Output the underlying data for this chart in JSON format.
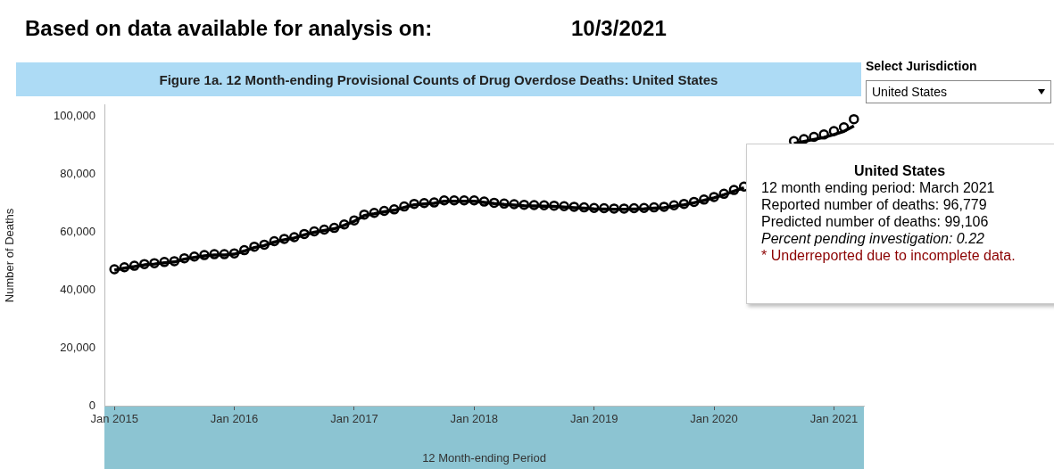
{
  "chart_data": {
    "type": "line",
    "title": "Figure 1a. 12 Month-ending Provisional Counts of Drug Overdose Deaths: United States",
    "xlabel": "12 Month-ending Period",
    "ylabel": "Number of Deaths",
    "annotations": [
      "Based on data available for analysis on:",
      "10/3/2021",
      "Select Jurisdiction",
      "United States",
      "United States",
      "12 month ending period: March 2021",
      "Reported number of deaths:  96,779",
      "Predicted number of deaths:  99,106",
      "Percent pending investigation: 0.22",
      "* Underreported due to incomplete data."
    ],
    "x": [
      "2015-01",
      "2015-02",
      "2015-03",
      "2015-04",
      "2015-05",
      "2015-06",
      "2015-07",
      "2015-08",
      "2015-09",
      "2015-10",
      "2015-11",
      "2015-12",
      "2016-01",
      "2016-02",
      "2016-03",
      "2016-04",
      "2016-05",
      "2016-06",
      "2016-07",
      "2016-08",
      "2016-09",
      "2016-10",
      "2016-11",
      "2016-12",
      "2017-01",
      "2017-02",
      "2017-03",
      "2017-04",
      "2017-05",
      "2017-06",
      "2017-07",
      "2017-08",
      "2017-09",
      "2017-10",
      "2017-11",
      "2017-12",
      "2018-01",
      "2018-02",
      "2018-03",
      "2018-04",
      "2018-05",
      "2018-06",
      "2018-07",
      "2018-08",
      "2018-09",
      "2018-10",
      "2018-11",
      "2018-12",
      "2019-01",
      "2019-02",
      "2019-03",
      "2019-04",
      "2019-05",
      "2019-06",
      "2019-07",
      "2019-08",
      "2019-09",
      "2019-10",
      "2019-11",
      "2019-12",
      "2020-01",
      "2020-02",
      "2020-03",
      "2020-04",
      "2020-05",
      "2020-06",
      "2020-07",
      "2020-08",
      "2020-09",
      "2020-10",
      "2020-11",
      "2020-12",
      "2021-01",
      "2021-02",
      "2021-03"
    ],
    "series": [
      {
        "type": "line",
        "color": "#000000",
        "marker": "none",
        "values": [
          46900,
          47600,
          48100,
          48700,
          49000,
          49400,
          49700,
          50700,
          51300,
          51800,
          52100,
          52100,
          52400,
          53500,
          54700,
          55400,
          56600,
          57400,
          58000,
          59100,
          60000,
          60600,
          61200,
          62400,
          63800,
          65800,
          66400,
          67100,
          67600,
          68600,
          69500,
          69800,
          70000,
          70700,
          70700,
          70700,
          70700,
          70300,
          69900,
          69600,
          69400,
          69200,
          69100,
          69000,
          68900,
          68700,
          68500,
          68300,
          68100,
          68000,
          67900,
          67900,
          68000,
          68100,
          68300,
          68500,
          69000,
          69500,
          70200,
          71000,
          71900,
          73000,
          74200,
          75400,
          null,
          null,
          null,
          null,
          90700,
          91400,
          92100,
          92800,
          93800,
          94900,
          96779
        ]
      },
      {
        "type": "scatter",
        "color": "#000000",
        "marker": "circle",
        "values": [
          47200,
          47900,
          48400,
          49000,
          49300,
          49700,
          50000,
          51000,
          51600,
          52100,
          52400,
          52400,
          52700,
          53800,
          55000,
          55700,
          56900,
          57700,
          58300,
          59400,
          60300,
          60900,
          61500,
          62700,
          64100,
          66100,
          66700,
          67400,
          67900,
          68900,
          69800,
          70100,
          70300,
          71000,
          71000,
          71000,
          71000,
          70600,
          70200,
          69900,
          69700,
          69500,
          69400,
          69300,
          69200,
          69000,
          68800,
          68600,
          68400,
          68300,
          68200,
          68200,
          68300,
          68400,
          68600,
          68800,
          69300,
          69800,
          70500,
          71300,
          72200,
          73300,
          74600,
          75800,
          null,
          null,
          null,
          null,
          91500,
          92200,
          93000,
          93800,
          95000,
          96300,
          99106
        ]
      }
    ],
    "xlim": [
      "2014-12",
      "2021-04"
    ],
    "xticks": [
      {
        "value": "2015-01",
        "label": "Jan 2015"
      },
      {
        "value": "2016-01",
        "label": "Jan 2016"
      },
      {
        "value": "2017-01",
        "label": "Jan 2017"
      },
      {
        "value": "2018-01",
        "label": "Jan 2018"
      },
      {
        "value": "2019-01",
        "label": "Jan 2019"
      },
      {
        "value": "2020-01",
        "label": "Jan 2020"
      },
      {
        "value": "2021-01",
        "label": "Jan 2021"
      }
    ],
    "ylim": [
      0,
      104000
    ],
    "yticks": [
      {
        "value": 0,
        "label": "0"
      },
      {
        "value": 20000,
        "label": "20,000"
      },
      {
        "value": 40000,
        "label": "40,000"
      },
      {
        "value": 60000,
        "label": "60,000"
      },
      {
        "value": 80000,
        "label": "80,000"
      },
      {
        "value": 100000,
        "label": "100,000"
      }
    ],
    "legend": false
  }
}
